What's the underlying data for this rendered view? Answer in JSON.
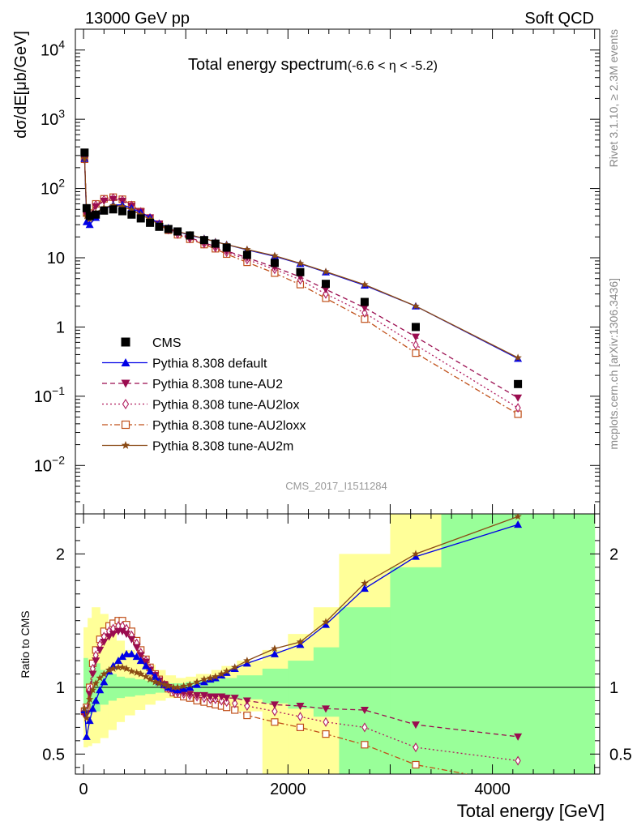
{
  "header": {
    "left": "13000 GeV pp",
    "right": "Soft QCD",
    "side_top": "Rivet 3.1.10, ≥ 2.3M events",
    "side_bottom": "mcplots.cern.ch [arXiv:1306.3436]",
    "analysis_id": "CMS_2017_I1511284"
  },
  "colors": {
    "cms": "#000000",
    "default": "#0000e6",
    "au2": "#9a0c4f",
    "au2lox": "#b01c5e",
    "au2loxx": "#c0501a",
    "au2m": "#8a4a14",
    "band_green": "#99ff99",
    "band_yellow": "#ffff99"
  },
  "chart_data": [
    {
      "type": "scatter",
      "panel": "main",
      "title": "Total energy spectrum",
      "title_suffix": "(-6.6 < η < -5.2)",
      "ylabel": "dσ/dE[μb/GeV]",
      "yscale": "log",
      "ylim": [
        0.002,
        20000
      ],
      "xlim": [
        -80,
        5050
      ],
      "y_ticks": [
        {
          "value": 10000,
          "base": "10",
          "exp": "4"
        },
        {
          "value": 1000,
          "base": "10",
          "exp": "3"
        },
        {
          "value": 100,
          "base": "10",
          "exp": "2"
        },
        {
          "value": 10,
          "base": "10",
          "exp": ""
        },
        {
          "value": 1,
          "base": "1",
          "exp": ""
        },
        {
          "value": 0.1,
          "base": "10",
          "exp": "−1"
        },
        {
          "value": 0.01,
          "base": "10",
          "exp": "−2"
        }
      ],
      "legend_position": "lower-left",
      "series": [
        {
          "key": "cms",
          "name": "CMS",
          "marker": "square",
          "x": [
            10,
            30,
            60,
            120,
            200,
            290,
            380,
            470,
            560,
            650,
            740,
            830,
            920,
            1040,
            1180,
            1290,
            1400,
            1600,
            1870,
            2120,
            2370,
            2750,
            3250,
            4250
          ],
          "y": [
            330,
            52,
            40,
            42,
            48,
            50,
            47,
            42,
            37,
            32,
            28,
            26,
            24,
            21,
            18,
            16,
            14,
            11,
            8.4,
            6.2,
            4.2,
            2.3,
            1.0,
            0.15
          ]
        },
        {
          "key": "default",
          "name": "Pythia 8.308 default",
          "marker": "triangle-up",
          "line": "solid",
          "x": [
            10,
            30,
            60,
            120,
            200,
            290,
            380,
            470,
            560,
            650,
            740,
            830,
            920,
            1040,
            1180,
            1290,
            1400,
            1600,
            1870,
            2120,
            2370,
            2750,
            3250,
            4250
          ],
          "y": [
            270,
            33,
            30,
            38,
            50,
            58,
            58,
            52,
            45,
            38,
            31,
            27,
            24,
            21,
            19,
            17,
            15.5,
            13,
            10.5,
            8.2,
            6.2,
            4.0,
            2.0,
            0.35
          ]
        },
        {
          "key": "au2",
          "name": "Pythia 8.308 tune-AU2",
          "marker": "triangle-down",
          "line": "dashed",
          "x": [
            10,
            30,
            60,
            120,
            200,
            290,
            380,
            470,
            560,
            650,
            740,
            830,
            920,
            1040,
            1180,
            1290,
            1400,
            1600,
            1870,
            2120,
            2370,
            2750,
            3250,
            4250
          ],
          "y": [
            265,
            42,
            40,
            55,
            66,
            70,
            66,
            56,
            46,
            38,
            31,
            26,
            23,
            19.5,
            16.5,
            14.5,
            12.5,
            10,
            7.3,
            5.3,
            3.5,
            1.9,
            0.72,
            0.095
          ]
        },
        {
          "key": "au2lox",
          "name": "Pythia 8.308 tune-AU2lox",
          "marker": "diamond-open",
          "line": "dotted",
          "x": [
            10,
            30,
            60,
            120,
            200,
            290,
            380,
            470,
            560,
            650,
            740,
            830,
            920,
            1040,
            1180,
            1290,
            1400,
            1600,
            1870,
            2120,
            2370,
            2750,
            3250,
            4250
          ],
          "y": [
            265,
            43,
            42,
            58,
            69,
            73,
            68,
            57,
            46,
            37.5,
            30.5,
            25.5,
            22,
            19,
            16,
            14,
            12,
            9.4,
            6.8,
            4.8,
            3.0,
            1.6,
            0.55,
            0.068
          ]
        },
        {
          "key": "au2loxx",
          "name": "Pythia 8.308 tune-AU2loxx",
          "marker": "square-open",
          "line": "dashdot",
          "x": [
            10,
            30,
            60,
            120,
            200,
            290,
            380,
            470,
            560,
            650,
            740,
            830,
            920,
            1040,
            1180,
            1290,
            1400,
            1600,
            1870,
            2120,
            2370,
            2750,
            3250,
            4250
          ],
          "y": [
            265,
            44,
            44,
            60,
            71,
            75,
            70,
            58,
            46.5,
            37.5,
            30,
            25,
            21.5,
            18.5,
            15.5,
            13.5,
            11.3,
            8.6,
            6.0,
            4.1,
            2.6,
            1.3,
            0.42,
            0.055
          ]
        },
        {
          "key": "au2m",
          "name": "Pythia 8.308 tune-AU2m",
          "marker": "star",
          "line": "solid",
          "x": [
            10,
            30,
            60,
            120,
            200,
            290,
            380,
            470,
            560,
            650,
            740,
            830,
            920,
            1040,
            1180,
            1290,
            1400,
            1600,
            1870,
            2120,
            2370,
            2750,
            3250,
            4250
          ],
          "y": [
            270,
            40,
            36,
            45,
            53,
            57,
            55,
            49,
            42,
            36,
            30,
            26.5,
            24,
            21.5,
            19,
            17,
            15.5,
            13.2,
            10.7,
            8.3,
            6.3,
            4.1,
            2.0,
            0.36
          ]
        }
      ]
    },
    {
      "type": "line",
      "panel": "ratio",
      "ylabel": "Ratio to CMS",
      "xlabel": "Total energy [GeV]",
      "ylim": [
        0.35,
        2.3
      ],
      "xlim": [
        -80,
        5050
      ],
      "x_ticks": [
        "0",
        "2000",
        "4000"
      ],
      "x_tick_values": [
        0,
        2000,
        4000
      ],
      "y_ticks": [
        "0.5",
        "1",
        "2"
      ],
      "y_tick_values": [
        0.5,
        1,
        2
      ],
      "uncertainty_bands": {
        "edges": [
          0,
          40,
          80,
          160,
          240,
          320,
          400,
          500,
          600,
          700,
          800,
          900,
          1000,
          1100,
          1250,
          1350,
          1500,
          1750,
          2000,
          2250,
          2500,
          3000,
          3500,
          5000
        ],
        "green_lo": [
          0.78,
          0.8,
          0.82,
          0.87,
          0.9,
          0.92,
          0.93,
          0.94,
          0.95,
          0.96,
          0.97,
          0.97,
          0.96,
          0.95,
          0.94,
          0.93,
          0.91,
          0.88,
          0.84,
          0.78,
          0.35,
          0.35,
          0.35
        ],
        "green_hi": [
          1.22,
          1.2,
          1.18,
          1.13,
          1.1,
          1.08,
          1.07,
          1.06,
          1.05,
          1.04,
          1.03,
          1.03,
          1.04,
          1.05,
          1.06,
          1.07,
          1.09,
          1.14,
          1.2,
          1.3,
          1.6,
          1.9,
          2.3
        ],
        "yellow_lo": [
          0.55,
          0.56,
          0.58,
          0.62,
          0.68,
          0.74,
          0.79,
          0.83,
          0.87,
          0.9,
          0.92,
          0.93,
          0.92,
          0.9,
          0.88,
          0.86,
          0.82,
          0.35,
          0.35,
          0.35,
          0.35,
          0.35,
          0.35
        ],
        "yellow_hi": [
          1.45,
          1.52,
          1.6,
          1.55,
          1.45,
          1.35,
          1.28,
          1.22,
          1.17,
          1.13,
          1.09,
          1.07,
          1.08,
          1.1,
          1.13,
          1.16,
          1.2,
          1.28,
          1.4,
          1.6,
          2.0,
          2.3,
          2.3
        ]
      },
      "reference_line": 1,
      "series": [
        {
          "key": "default",
          "x": [
            10,
            30,
            60,
            90,
            120,
            160,
            200,
            250,
            290,
            340,
            380,
            420,
            470,
            520,
            560,
            610,
            650,
            700,
            740,
            790,
            830,
            880,
            920,
            980,
            1040,
            1110,
            1180,
            1240,
            1290,
            1350,
            1400,
            1480,
            1600,
            1870,
            2120,
            2370,
            2750,
            3250,
            4250
          ],
          "y": [
            0.83,
            0.63,
            0.75,
            0.84,
            0.9,
            0.98,
            1.04,
            1.12,
            1.16,
            1.2,
            1.23,
            1.25,
            1.25,
            1.23,
            1.2,
            1.16,
            1.12,
            1.08,
            1.04,
            1.02,
            1.0,
            0.99,
            0.98,
            0.99,
            1.0,
            1.02,
            1.04,
            1.06,
            1.07,
            1.09,
            1.11,
            1.14,
            1.18,
            1.25,
            1.32,
            1.47,
            1.74,
            1.98,
            2.22
          ]
        },
        {
          "key": "au2",
          "x": [
            10,
            30,
            60,
            90,
            120,
            160,
            200,
            250,
            290,
            340,
            380,
            420,
            470,
            520,
            560,
            610,
            650,
            700,
            740,
            790,
            830,
            880,
            920,
            980,
            1040,
            1110,
            1180,
            1240,
            1290,
            1350,
            1400,
            1480,
            1600,
            1870,
            2120,
            2370,
            2750,
            3250,
            4250
          ],
          "y": [
            0.8,
            0.8,
            0.95,
            1.1,
            1.2,
            1.28,
            1.34,
            1.38,
            1.4,
            1.42,
            1.42,
            1.4,
            1.36,
            1.3,
            1.24,
            1.19,
            1.13,
            1.09,
            1.05,
            1.02,
            1.0,
            0.98,
            0.97,
            0.96,
            0.95,
            0.94,
            0.94,
            0.93,
            0.93,
            0.93,
            0.92,
            0.92,
            0.9,
            0.87,
            0.86,
            0.84,
            0.83,
            0.72,
            0.63
          ]
        },
        {
          "key": "au2lox",
          "x": [
            10,
            30,
            60,
            90,
            120,
            160,
            200,
            250,
            290,
            340,
            380,
            420,
            470,
            520,
            560,
            610,
            650,
            700,
            740,
            790,
            830,
            880,
            920,
            980,
            1040,
            1110,
            1180,
            1240,
            1290,
            1350,
            1400,
            1480,
            1600,
            1870,
            2120,
            2370,
            2750,
            3250,
            4250
          ],
          "y": [
            0.8,
            0.82,
            0.98,
            1.14,
            1.24,
            1.32,
            1.38,
            1.42,
            1.44,
            1.46,
            1.46,
            1.44,
            1.39,
            1.33,
            1.26,
            1.2,
            1.14,
            1.09,
            1.05,
            1.02,
            0.99,
            0.97,
            0.96,
            0.95,
            0.94,
            0.93,
            0.92,
            0.91,
            0.91,
            0.9,
            0.89,
            0.88,
            0.86,
            0.82,
            0.78,
            0.74,
            0.7,
            0.55,
            0.45
          ]
        },
        {
          "key": "au2loxx",
          "x": [
            10,
            30,
            60,
            90,
            120,
            160,
            200,
            250,
            290,
            340,
            380,
            420,
            470,
            520,
            560,
            610,
            650,
            700,
            740,
            790,
            830,
            880,
            920,
            980,
            1040,
            1110,
            1180,
            1240,
            1290,
            1350,
            1400,
            1480,
            1600,
            1870,
            2120,
            2370,
            2750,
            3250,
            3750
          ],
          "y": [
            0.82,
            0.85,
            1.0,
            1.18,
            1.28,
            1.36,
            1.42,
            1.46,
            1.48,
            1.5,
            1.5,
            1.47,
            1.42,
            1.35,
            1.28,
            1.21,
            1.15,
            1.1,
            1.06,
            1.02,
            0.99,
            0.96,
            0.95,
            0.93,
            0.92,
            0.9,
            0.89,
            0.88,
            0.87,
            0.86,
            0.85,
            0.83,
            0.79,
            0.74,
            0.7,
            0.65,
            0.57,
            0.42,
            0.35
          ]
        },
        {
          "key": "au2m",
          "x": [
            10,
            30,
            60,
            90,
            120,
            160,
            200,
            250,
            290,
            340,
            380,
            420,
            470,
            520,
            560,
            610,
            650,
            700,
            740,
            790,
            830,
            880,
            920,
            980,
            1040,
            1110,
            1180,
            1240,
            1290,
            1350,
            1400,
            1480,
            1600,
            1870,
            2120,
            2370,
            2750,
            3250,
            4250
          ],
          "y": [
            0.84,
            0.77,
            0.91,
            0.98,
            1.03,
            1.07,
            1.1,
            1.13,
            1.14,
            1.15,
            1.15,
            1.14,
            1.12,
            1.11,
            1.1,
            1.08,
            1.06,
            1.04,
            1.03,
            1.02,
            1.01,
            1.0,
            1.0,
            1.01,
            1.02,
            1.04,
            1.06,
            1.07,
            1.08,
            1.1,
            1.12,
            1.15,
            1.2,
            1.29,
            1.34,
            1.49,
            1.78,
            2.0,
            2.28
          ]
        }
      ]
    }
  ]
}
